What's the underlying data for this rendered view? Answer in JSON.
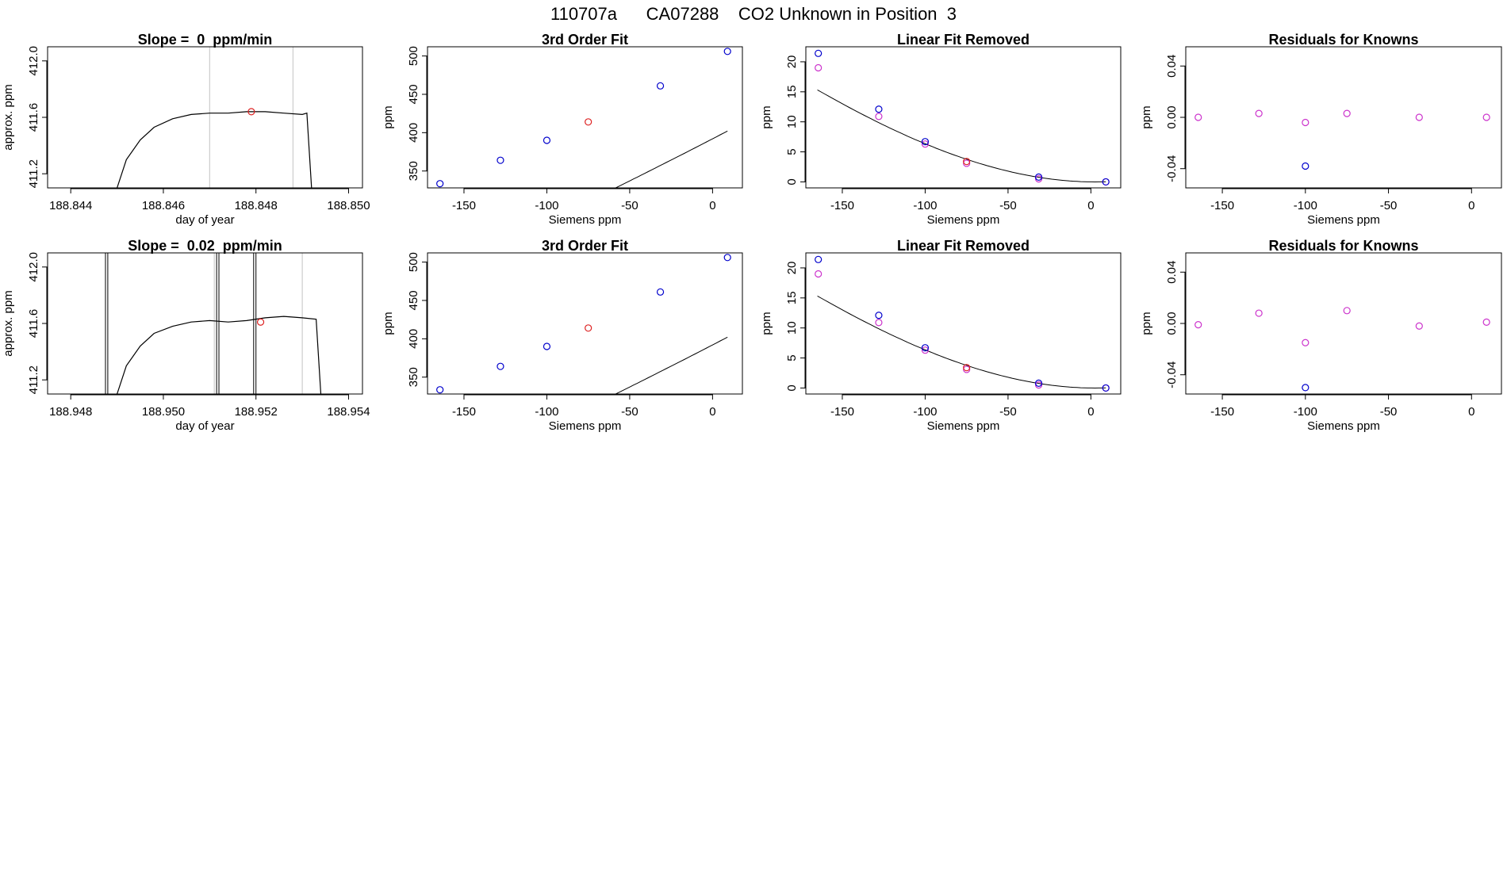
{
  "page_title": "110707a      CA07288    CO2 Unknown in Position  3",
  "colors": {
    "line": "#000000",
    "known_fit": "#0000cc",
    "known_raw": "#cc33cc",
    "unknown": "#dd2222",
    "vline": "#cccccc",
    "frame": "#000000"
  },
  "chart_data": [
    {
      "type": "line",
      "title": "Slope =  0  ppm/min",
      "xlabel": "day of year",
      "ylabel": "approx. ppm",
      "xlim": [
        188.8435,
        188.8503
      ],
      "ylim": [
        411.1,
        412.1
      ],
      "x_ticks": [
        188.844,
        188.846,
        188.848,
        188.85
      ],
      "x_tick_labels": [
        "188.844",
        "188.846",
        "188.848",
        "188.850"
      ],
      "y_ticks": [
        411.2,
        411.6,
        412.0
      ],
      "y_tick_labels": [
        "411.2",
        "411.6",
        "412.0"
      ],
      "vlines": [
        188.847,
        188.8488
      ],
      "trace_x": [
        188.845,
        188.8452,
        188.8455,
        188.8458,
        188.8462,
        188.8466,
        188.847,
        188.8474,
        188.8478,
        188.8482,
        188.8486,
        188.849,
        188.8491,
        188.8492
      ],
      "trace_y": [
        411.1,
        411.3,
        411.44,
        411.53,
        411.59,
        411.62,
        411.63,
        411.63,
        411.64,
        411.64,
        411.63,
        411.62,
        411.63,
        411.1
      ],
      "unknown_point": {
        "x": 188.8479,
        "y": 411.64
      }
    },
    {
      "type": "scatter",
      "title": "3rd Order Fit",
      "xlabel": "Siemens ppm",
      "ylabel": "ppm",
      "xlim": [
        -172,
        18
      ],
      "ylim": [
        328,
        512
      ],
      "x_ticks": [
        -150,
        -100,
        -50,
        0
      ],
      "x_tick_labels": [
        "-150",
        "-100",
        "-50",
        "0"
      ],
      "y_ticks": [
        350,
        400,
        450,
        500
      ],
      "y_tick_labels": [
        "350",
        "400",
        "450",
        "500"
      ],
      "curve": {
        "coef": [
          392.0,
          1.12,
          0.00052,
          1.6e-06
        ],
        "x_from": -165,
        "x_to": 9
      },
      "knowns": [
        {
          "x": -164.5,
          "y": 333.5
        },
        {
          "x": -128,
          "y": 364
        },
        {
          "x": -100,
          "y": 390
        },
        {
          "x": -31.5,
          "y": 461
        },
        {
          "x": 9,
          "y": 506
        }
      ],
      "unknown": {
        "x": -75,
        "y": 414
      }
    },
    {
      "type": "scatter",
      "title": "Linear Fit Removed",
      "xlabel": "Siemens ppm",
      "ylabel": "ppm",
      "xlim": [
        -172,
        18
      ],
      "ylim": [
        -1,
        22.5
      ],
      "x_ticks": [
        -150,
        -100,
        -50,
        0
      ],
      "x_tick_labels": [
        "-150",
        "-100",
        "-50",
        "0"
      ],
      "y_ticks": [
        0,
        5,
        10,
        15,
        20
      ],
      "y_tick_labels": [
        "0",
        "5",
        "10",
        "15",
        "20"
      ],
      "curve": {
        "coef": [
          0.0,
          -0.0035,
          0.00069,
          9e-07
        ],
        "x_from": -165,
        "x_to": 9
      },
      "knowns": [
        {
          "x": -164.5,
          "y": 21.4
        },
        {
          "x": -128,
          "y": 12.1
        },
        {
          "x": -100,
          "y": 6.7
        },
        {
          "x": -31.5,
          "y": 0.8
        },
        {
          "x": 9,
          "y": 0.0
        }
      ],
      "knowns_raw": [
        {
          "x": -164.5,
          "y": 19.0
        },
        {
          "x": -128,
          "y": 10.9
        },
        {
          "x": -100,
          "y": 6.3
        },
        {
          "x": -75,
          "y": 3.1
        },
        {
          "x": -31.5,
          "y": 0.5
        },
        {
          "x": 9,
          "y": 0.0
        }
      ],
      "unknown": {
        "x": -75,
        "y": 3.4
      }
    },
    {
      "type": "scatter",
      "title": "Residuals for Knowns",
      "xlabel": "Siemens ppm",
      "ylabel": "ppm",
      "xlim": [
        -172,
        18
      ],
      "ylim": [
        -0.055,
        0.055
      ],
      "x_ticks": [
        -150,
        -100,
        -50,
        0
      ],
      "x_tick_labels": [
        "-150",
        "-100",
        "-50",
        "0"
      ],
      "y_ticks": [
        -0.04,
        0.0,
        0.04
      ],
      "y_tick_labels": [
        "-0.04",
        "0.00",
        "0.04"
      ],
      "knowns_raw": [
        {
          "x": -164.5,
          "y": 0.0
        },
        {
          "x": -128,
          "y": 0.003
        },
        {
          "x": -100,
          "y": -0.004
        },
        {
          "x": -75,
          "y": 0.003
        },
        {
          "x": -31.5,
          "y": 0.0
        },
        {
          "x": 9,
          "y": 0.0
        }
      ],
      "knowns": [
        {
          "x": -100,
          "y": -0.038
        }
      ]
    },
    {
      "type": "line",
      "title": "Slope =  0.02  ppm/min",
      "xlabel": "day of year",
      "ylabel": "approx. ppm",
      "xlim": [
        188.9475,
        188.9543
      ],
      "ylim": [
        411.1,
        412.1
      ],
      "x_ticks": [
        188.948,
        188.95,
        188.952,
        188.954
      ],
      "x_tick_labels": [
        "188.948",
        "188.950",
        "188.952",
        "188.954"
      ],
      "y_ticks": [
        411.2,
        411.6,
        412.0
      ],
      "y_tick_labels": [
        "411.2",
        "411.6",
        "412.0"
      ],
      "vlines": [
        188.9511,
        188.953
      ],
      "spikes": [
        188.94875,
        188.9488,
        188.95115,
        188.9512,
        188.95195,
        188.952
      ],
      "trace_x": [
        188.949,
        188.9492,
        188.9495,
        188.9498,
        188.9502,
        188.9506,
        188.951,
        188.9514,
        188.9518,
        188.9522,
        188.9526,
        188.953,
        188.9533,
        188.9534
      ],
      "trace_y": [
        411.1,
        411.3,
        411.44,
        411.53,
        411.58,
        411.61,
        411.62,
        411.61,
        411.62,
        411.64,
        411.65,
        411.64,
        411.63,
        411.1
      ],
      "unknown_point": {
        "x": 188.9521,
        "y": 411.61
      }
    },
    {
      "type": "scatter",
      "title": "3rd Order Fit",
      "xlabel": "Siemens ppm",
      "ylabel": "ppm",
      "xlim": [
        -172,
        18
      ],
      "ylim": [
        328,
        512
      ],
      "x_ticks": [
        -150,
        -100,
        -50,
        0
      ],
      "x_tick_labels": [
        "-150",
        "-100",
        "-50",
        "0"
      ],
      "y_ticks": [
        350,
        400,
        450,
        500
      ],
      "y_tick_labels": [
        "350",
        "400",
        "450",
        "500"
      ],
      "curve": {
        "coef": [
          392.0,
          1.12,
          0.00052,
          1.6e-06
        ],
        "x_from": -165,
        "x_to": 9
      },
      "knowns": [
        {
          "x": -164.5,
          "y": 333.5
        },
        {
          "x": -128,
          "y": 364
        },
        {
          "x": -100,
          "y": 390
        },
        {
          "x": -31.5,
          "y": 461
        },
        {
          "x": 9,
          "y": 506
        }
      ],
      "unknown": {
        "x": -75,
        "y": 414
      }
    },
    {
      "type": "scatter",
      "title": "Linear Fit Removed",
      "xlabel": "Siemens ppm",
      "ylabel": "ppm",
      "xlim": [
        -172,
        18
      ],
      "ylim": [
        -1,
        22.5
      ],
      "x_ticks": [
        -150,
        -100,
        -50,
        0
      ],
      "x_tick_labels": [
        "-150",
        "-100",
        "-50",
        "0"
      ],
      "y_ticks": [
        0,
        5,
        10,
        15,
        20
      ],
      "y_tick_labels": [
        "0",
        "5",
        "10",
        "15",
        "20"
      ],
      "curve": {
        "coef": [
          0.0,
          -0.0035,
          0.00069,
          9e-07
        ],
        "x_from": -165,
        "x_to": 9
      },
      "knowns": [
        {
          "x": -164.5,
          "y": 21.4
        },
        {
          "x": -128,
          "y": 12.1
        },
        {
          "x": -100,
          "y": 6.7
        },
        {
          "x": -31.5,
          "y": 0.8
        },
        {
          "x": 9,
          "y": 0.0
        }
      ],
      "knowns_raw": [
        {
          "x": -164.5,
          "y": 19.0
        },
        {
          "x": -128,
          "y": 10.9
        },
        {
          "x": -100,
          "y": 6.3
        },
        {
          "x": -75,
          "y": 3.1
        },
        {
          "x": -31.5,
          "y": 0.5
        },
        {
          "x": 9,
          "y": 0.0
        }
      ],
      "unknown": {
        "x": -75,
        "y": 3.4
      }
    },
    {
      "type": "scatter",
      "title": "Residuals for Knowns",
      "xlabel": "Siemens ppm",
      "ylabel": "ppm",
      "xlim": [
        -172,
        18
      ],
      "ylim": [
        -0.055,
        0.055
      ],
      "x_ticks": [
        -150,
        -100,
        -50,
        0
      ],
      "x_tick_labels": [
        "-150",
        "-100",
        "-50",
        "0"
      ],
      "y_ticks": [
        -0.04,
        0.0,
        0.04
      ],
      "y_tick_labels": [
        "-0.04",
        "0.00",
        "0.04"
      ],
      "knowns_raw": [
        {
          "x": -164.5,
          "y": -0.001
        },
        {
          "x": -128,
          "y": 0.008
        },
        {
          "x": -100,
          "y": -0.015
        },
        {
          "x": -75,
          "y": 0.01
        },
        {
          "x": -31.5,
          "y": -0.002
        },
        {
          "x": 9,
          "y": 0.001
        }
      ],
      "knowns": [
        {
          "x": -100,
          "y": -0.05
        }
      ]
    }
  ]
}
